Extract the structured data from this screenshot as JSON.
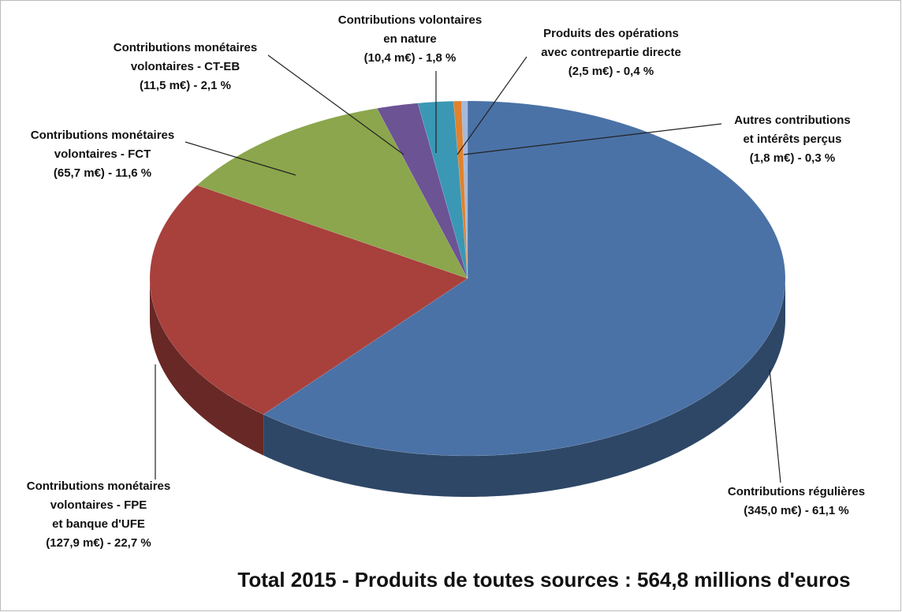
{
  "chart_data": {
    "type": "pie3d",
    "title": "Total 2015 - Produits de toutes sources : 564,8 millions d'euros",
    "categories": [
      "Contributions régulières",
      "Contributions monétaires\nvolontaires - FPE\net banque d'UFE",
      "Contributions monétaires\nvolontaires - FCT",
      "Contributions monétaires\nvolontaires - CT-EB",
      "Contributions volontaires\nen nature",
      "Produits des opérations\navec contrepartie directe",
      "Autres contributions\net intérêts perçus"
    ],
    "values": [
      61.1,
      22.7,
      11.6,
      2.1,
      1.8,
      0.4,
      0.3
    ],
    "value_labels": [
      "(345,0 m€) - 61,1 %",
      "(127,9 m€) - 22,7 %",
      "(65,7 m€) - 11,6 %",
      "(11,5 m€) - 2,1 %",
      "(10,4 m€) - 1,8 %",
      "(2,5 m€) - 0,4 %",
      "(1,8 m€) - 0,3 %"
    ],
    "colors": [
      "#4a72a6",
      "#a8403c",
      "#8ba64c",
      "#6c5394",
      "#3a98b5",
      "#e0822e",
      "#a5b9dc"
    ]
  }
}
